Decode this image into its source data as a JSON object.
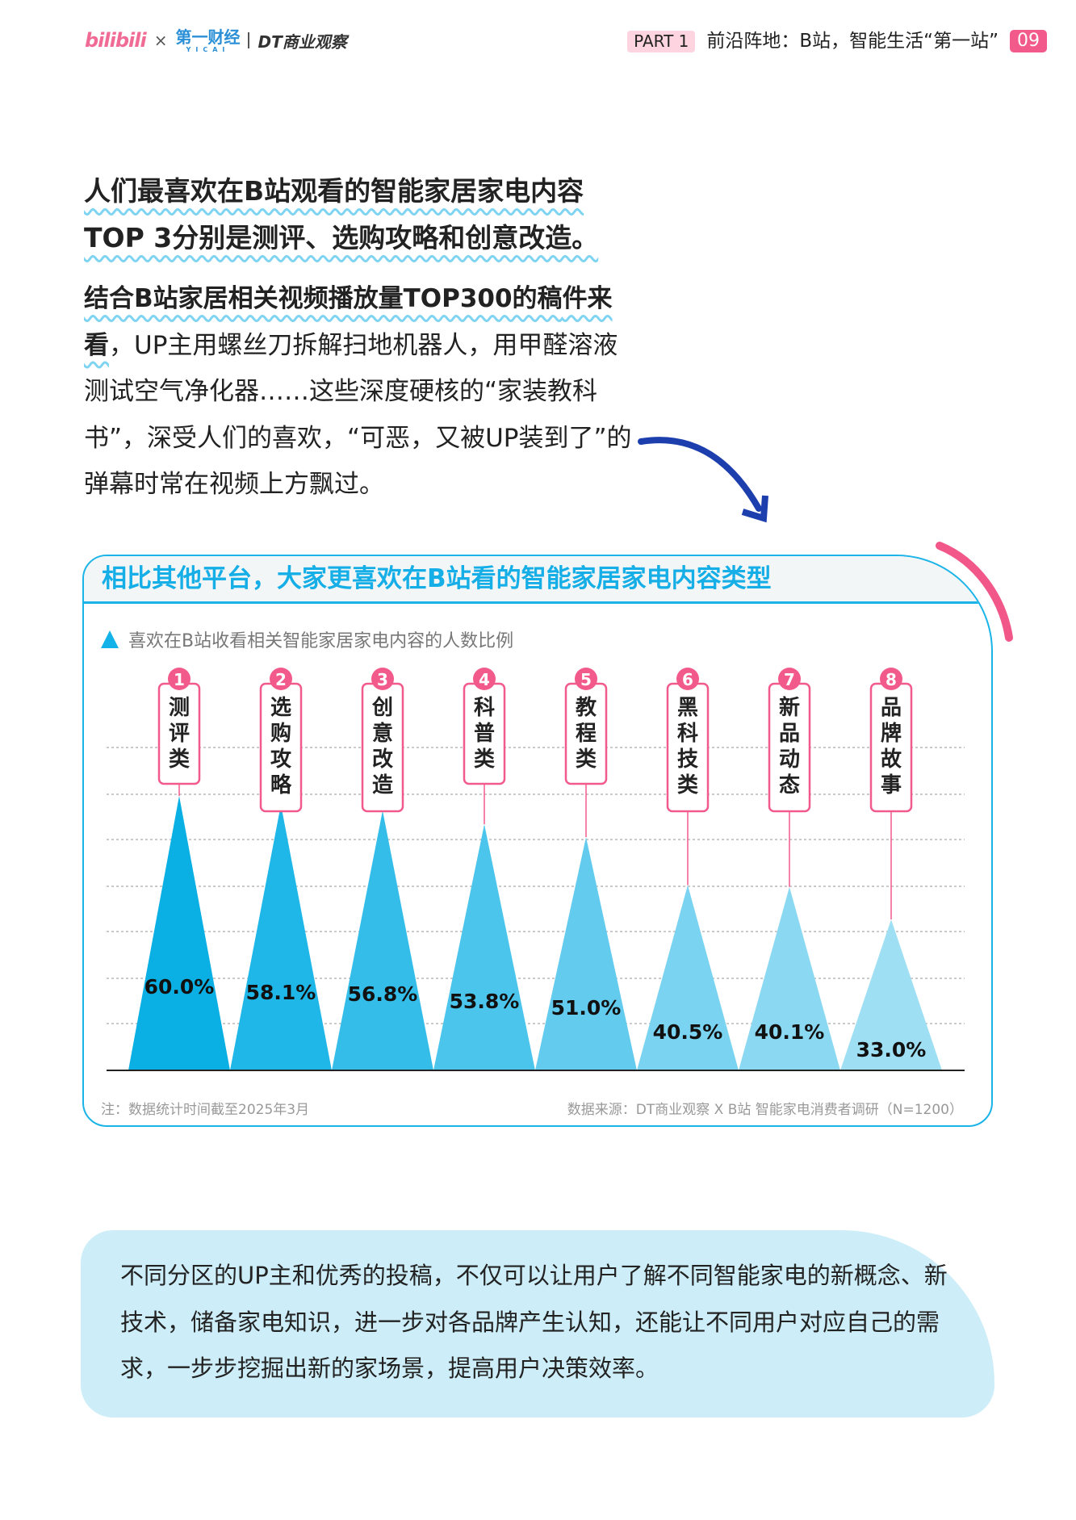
{
  "header": {
    "logos": [
      "bilibili",
      "第一财经 YICAI",
      "DT商业观察"
    ],
    "separator": "×",
    "part": "PART 1",
    "section_title": "前沿阵地：B站，智能生活“第一站”",
    "page_number": "09"
  },
  "lead": {
    "lines": [
      "人们最喜欢在B站观看的智能家居家电内容",
      "TOP 3分别是测评、选购攻略和创意改造。"
    ]
  },
  "paragraph": {
    "bold_part_1": "结合B站家居相关视频播放量TOP300的稿",
    "bold_part_2": "件来看",
    "rest": "，UP主用螺丝刀拆解扫地机器人，用甲醛溶液测试空气净化器……这些深度硬核的“家装教科书”，深受人们的喜欢，“可恶，又被UP装到了”的弹幕时常在视频上方飘过。"
  },
  "chart": {
    "title": "相比其他平台，大家更喜欢在B站看的智能家居家电内容类型",
    "legend": "喜欢在B站收看相关智能家居家电内容的人数比例",
    "note": "注：数据统计时间截至2025年3月",
    "source": "数据来源：DT商业观察 X B站 智能家电消费者调研（N=1200）"
  },
  "chart_data": {
    "type": "bar",
    "shape": "triangle",
    "categories": [
      "测评类",
      "选购攻略",
      "创意改造",
      "科普类",
      "教程类",
      "黑科技类",
      "新品动态",
      "品牌故事"
    ],
    "ranks": [
      "1",
      "2",
      "3",
      "4",
      "5",
      "6",
      "7",
      "8"
    ],
    "values": [
      60.0,
      58.1,
      56.8,
      53.8,
      51.0,
      40.5,
      40.1,
      33.0
    ],
    "labels": [
      "60.0%",
      "58.1%",
      "56.8%",
      "53.8%",
      "51.0%",
      "40.5%",
      "40.1%",
      "33.0%"
    ],
    "unit": "%",
    "ylim": [
      0,
      60
    ],
    "grid": true,
    "colors": [
      "#0aafe3",
      "#1fb6e8",
      "#35bdea",
      "#4cc5ec",
      "#63cbee",
      "#7ad3f0",
      "#8ad8f2",
      "#9fdff4"
    ],
    "accent": "#f25a8c"
  },
  "bottom_note": "不同分区的UP主和优秀的投稿，不仅可以让用户了解不同智能家电的新概念、新技术，储备家电知识，进一步对各品牌产生认知，还能让不同用户对应自己的需求，一步步挖掘出新的家场景，提高用户决策效率。"
}
